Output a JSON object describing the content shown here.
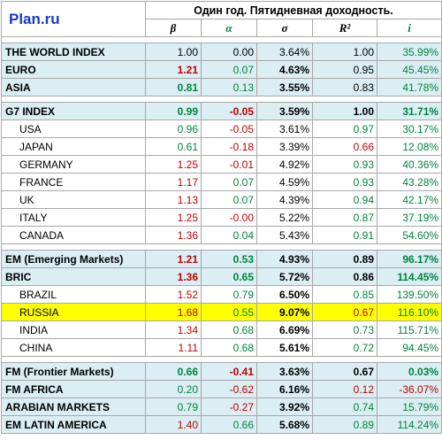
{
  "header": {
    "logo": "Plan.ru",
    "title": "Один год. Пятидневная доходность.",
    "cols": [
      "β",
      "α",
      "σ",
      "R²",
      "i"
    ],
    "col_colors": [
      "#000000",
      "#00843d",
      "#000000",
      "#000000",
      "#00843d"
    ]
  },
  "colors": {
    "red": "#c00000",
    "green": "#00843d",
    "blue_row": "#daeef3",
    "highlight": "#ffff00"
  },
  "rows": [
    {
      "name": "THE WORLD INDEX",
      "beta": "1.00",
      "alpha": "0.00",
      "sigma": "3.64%",
      "r2": "1.00",
      "i": "35.99%"
    },
    {
      "name": "EURO",
      "beta": "1.21",
      "alpha": "0.07",
      "sigma": "4.63%",
      "r2": "0.95",
      "i": "45.45%"
    },
    {
      "name": "ASIA",
      "beta": "0.81",
      "alpha": "0.13",
      "sigma": "3.55%",
      "r2": "0.83",
      "i": "41.78%"
    },
    {
      "name": "G7 INDEX",
      "beta": "0.99",
      "alpha": "-0.05",
      "sigma": "3.59%",
      "r2": "1.00",
      "i": "31.71%"
    },
    {
      "name": "USA",
      "beta": "0.96",
      "alpha": "-0.05",
      "sigma": "3.61%",
      "r2": "0.97",
      "i": "30.17%"
    },
    {
      "name": "JAPAN",
      "beta": "0.61",
      "alpha": "-0.18",
      "sigma": "3.39%",
      "r2": "0.66",
      "i": "12.08%"
    },
    {
      "name": "GERMANY",
      "beta": "1.25",
      "alpha": "-0.01",
      "sigma": "4.92%",
      "r2": "0.93",
      "i": "40.36%"
    },
    {
      "name": "FRANCE",
      "beta": "1.17",
      "alpha": "0.07",
      "sigma": "4.59%",
      "r2": "0.93",
      "i": "43.28%"
    },
    {
      "name": "UK",
      "beta": "1.13",
      "alpha": "0.07",
      "sigma": "4.39%",
      "r2": "0.94",
      "i": "42.17%"
    },
    {
      "name": "ITALY",
      "beta": "1.25",
      "alpha": "-0.00",
      "sigma": "5.22%",
      "r2": "0.87",
      "i": "37.19%"
    },
    {
      "name": "CANADA",
      "beta": "1.36",
      "alpha": "0.04",
      "sigma": "5.43%",
      "r2": "0.91",
      "i": "54.60%"
    },
    {
      "name": "EM (Emerging Markets)",
      "beta": "1.21",
      "alpha": "0.53",
      "sigma": "4.93%",
      "r2": "0.89",
      "i": "96.17%"
    },
    {
      "name": "BRIC",
      "beta": "1.36",
      "alpha": "0.65",
      "sigma": "5.72%",
      "r2": "0.86",
      "i": "114.45%"
    },
    {
      "name": "BRAZIL",
      "beta": "1.52",
      "alpha": "0.79",
      "sigma": "6.50%",
      "r2": "0.85",
      "i": "139.50%"
    },
    {
      "name": "RUSSIA",
      "beta": "1.68",
      "alpha": "0.55",
      "sigma": "9.07%",
      "r2": "0.67",
      "i": "116.10%"
    },
    {
      "name": "INDIA",
      "beta": "1.34",
      "alpha": "0.68",
      "sigma": "6.69%",
      "r2": "0.73",
      "i": "115.71%"
    },
    {
      "name": "CHINA",
      "beta": "1.11",
      "alpha": "0.68",
      "sigma": "5.61%",
      "r2": "0.72",
      "i": "94.45%"
    },
    {
      "name": "FM (Frontier Markets)",
      "beta": "0.66",
      "alpha": "-0.41",
      "sigma": "3.63%",
      "r2": "0.67",
      "i": "0.03%"
    },
    {
      "name": "FM AFRICA",
      "beta": "0.20",
      "alpha": "-0.62",
      "sigma": "6.16%",
      "r2": "0.12",
      "i": "-36.07%"
    },
    {
      "name": "ARABIAN MARKETS",
      "beta": "0.79",
      "alpha": "-0.27",
      "sigma": "3.92%",
      "r2": "0.74",
      "i": "15.79%"
    },
    {
      "name": "EM LATIN AMERICA",
      "beta": "1.40",
      "alpha": "0.66",
      "sigma": "5.68%",
      "r2": "0.89",
      "i": "114.24%"
    }
  ]
}
